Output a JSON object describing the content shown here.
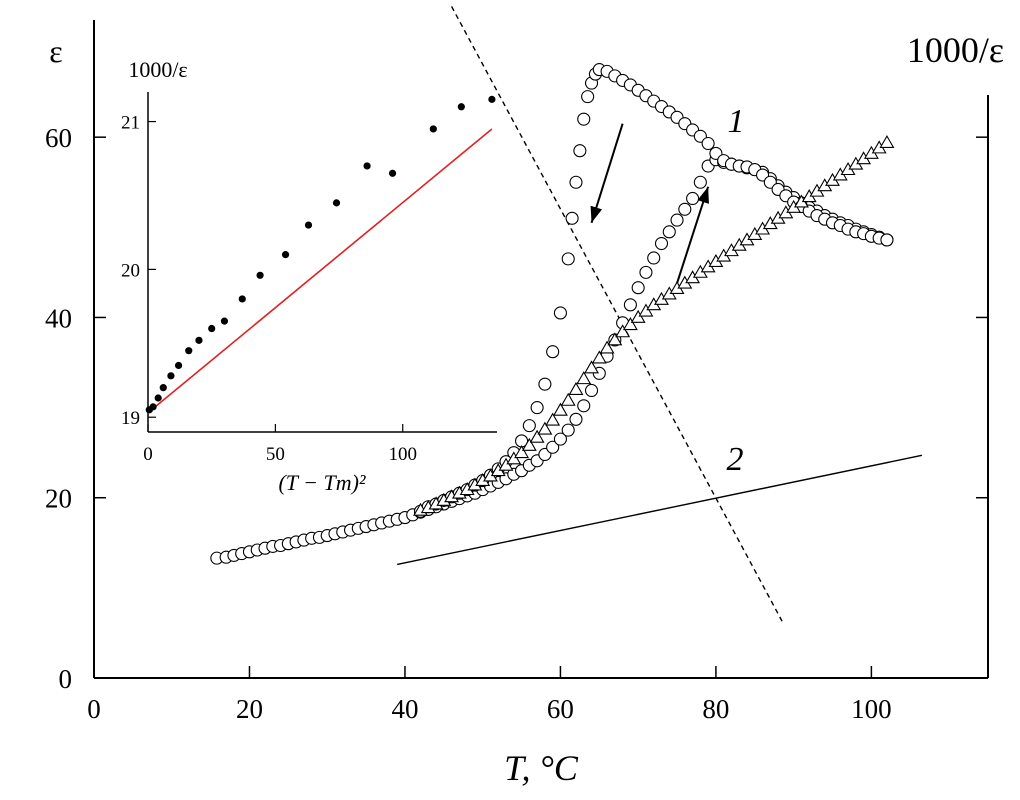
{
  "chart_data": [
    {
      "id": "main",
      "type": "scatter",
      "xlabel": "T, °C",
      "ylabel_left": "ε",
      "ylabel_right": "1000/ε",
      "xlim": [
        0,
        115
      ],
      "ylim": [
        0,
        73
      ],
      "xticks": [
        0,
        20,
        40,
        60,
        80,
        100
      ],
      "yticks": [
        0,
        20,
        40,
        60
      ],
      "grid": false,
      "annotations": [
        "1",
        "2"
      ],
      "series": [
        {
          "marker": "circle",
          "label": "1",
          "x": [
            15.8,
            17,
            18,
            19,
            20,
            21,
            22,
            23,
            24,
            25,
            26,
            27,
            28,
            29,
            30,
            31,
            32,
            33,
            34,
            35,
            36,
            37,
            38,
            39,
            40,
            41,
            42,
            43,
            44,
            45,
            46,
            47,
            48,
            49,
            50,
            51,
            52,
            53,
            54,
            55,
            56,
            57,
            58,
            59,
            60,
            61,
            62,
            63,
            64,
            65,
            66,
            67,
            68,
            69,
            70,
            71,
            72,
            73,
            74,
            75,
            76,
            77,
            78,
            79,
            80,
            81,
            82,
            83,
            84,
            85,
            86,
            87,
            88,
            89,
            90,
            91,
            92,
            93,
            94,
            95,
            96,
            97,
            98,
            99,
            100,
            101,
            102
          ],
          "y": [
            13.3,
            13.4,
            13.6,
            13.8,
            14.0,
            14.2,
            14.4,
            14.6,
            14.7,
            14.9,
            15.1,
            15.3,
            15.5,
            15.6,
            15.8,
            16.0,
            16.2,
            16.4,
            16.6,
            16.8,
            17.0,
            17.2,
            17.4,
            17.6,
            17.8,
            18.1,
            18.4,
            18.7,
            19.0,
            19.3,
            19.6,
            19.9,
            20.2,
            20.5,
            20.9,
            21.3,
            21.7,
            22.1,
            22.6,
            23.0,
            23.6,
            24.1,
            24.8,
            25.6,
            26.5,
            27.5,
            28.7,
            30.2,
            31.9,
            33.8,
            35.7,
            37.5,
            39.4,
            41.4,
            43.3,
            45.0,
            46.6,
            48.2,
            49.5,
            50.8,
            52.0,
            53.2,
            55.0,
            56.8,
            57.5,
            57.2,
            57.0,
            56.8,
            56.6,
            56.4,
            56.1,
            55.4,
            54.6,
            53.9,
            53.3,
            52.7,
            52.2,
            51.8,
            51.3,
            50.9,
            50.5,
            50.2,
            49.8,
            49.5,
            49.2,
            48.9,
            48.6
          ]
        },
        {
          "marker": "circle",
          "label": "1",
          "x": [
            42,
            43,
            44,
            45,
            46,
            47,
            48,
            49,
            50,
            51,
            52,
            53,
            54,
            55,
            56,
            57,
            58,
            59,
            60,
            61,
            61.5,
            62,
            62.5,
            63,
            63.5,
            64,
            64.5,
            65,
            66,
            67,
            68,
            69,
            70,
            71,
            72,
            73,
            74,
            75,
            76,
            77,
            78,
            79,
            80,
            81,
            82,
            83,
            84,
            85,
            86,
            87,
            88,
            89,
            90,
            91,
            92,
            93,
            94,
            95,
            96,
            97,
            98,
            99,
            100,
            101,
            102
          ],
          "y": [
            18.5,
            19.0,
            19.3,
            19.7,
            20.1,
            20.5,
            20.9,
            21.4,
            21.9,
            22.5,
            23.2,
            24.0,
            25.0,
            26.3,
            28.0,
            30.0,
            32.6,
            36.2,
            40.5,
            46.5,
            51.0,
            55.0,
            58.5,
            62.0,
            64.5,
            66.0,
            67.0,
            67.5,
            67.3,
            66.8,
            66.3,
            65.8,
            65.2,
            64.6,
            64.0,
            63.4,
            62.8,
            62.2,
            61.5,
            60.8,
            60.1,
            59.3,
            58.2,
            57.4,
            57.0,
            56.8,
            56.7,
            56.4,
            55.8,
            55.0,
            54.2,
            53.5,
            52.8,
            52.3,
            51.8,
            51.3,
            50.9,
            50.5,
            50.2,
            49.8,
            49.5,
            49.3,
            49.0,
            48.8,
            48.6
          ]
        },
        {
          "marker": "triangle",
          "label": "2",
          "x": [
            42,
            43,
            44,
            45,
            46,
            47,
            48,
            49,
            50,
            51,
            52,
            53,
            54,
            55,
            56,
            57,
            58,
            59,
            60,
            61,
            62,
            63,
            64,
            65,
            66,
            67,
            68,
            69,
            70,
            71,
            72,
            73,
            74,
            75,
            76,
            77,
            78,
            79,
            80,
            81,
            82,
            83,
            84,
            85,
            86,
            87,
            88,
            89,
            90,
            91,
            92,
            93,
            94,
            95,
            96,
            97,
            98,
            99,
            100,
            101,
            102
          ],
          "y": [
            18.6,
            18.9,
            19.3,
            19.7,
            20.1,
            20.5,
            20.9,
            21.4,
            21.9,
            22.4,
            23.0,
            23.6,
            24.3,
            25.0,
            25.8,
            26.7,
            27.6,
            28.6,
            29.7,
            30.8,
            32.0,
            33.2,
            34.4,
            35.5,
            36.6,
            37.5,
            38.4,
            39.2,
            40.0,
            40.7,
            41.4,
            42.0,
            42.6,
            43.2,
            43.8,
            44.4,
            45.0,
            45.6,
            46.2,
            46.8,
            47.4,
            48.0,
            48.6,
            49.2,
            49.8,
            50.4,
            51.0,
            51.6,
            52.2,
            52.8,
            53.4,
            54.0,
            54.6,
            55.2,
            55.8,
            56.4,
            57.0,
            57.6,
            58.2,
            58.8,
            59.4
          ]
        }
      ],
      "fit_lines": [
        {
          "style": "solid",
          "x": [
            39,
            106.5
          ],
          "y": [
            12.6,
            24.7
          ]
        },
        {
          "style": "dashed",
          "x": [
            46,
            88.7
          ],
          "y": [
            74.5,
            6.0
          ]
        }
      ],
      "arrows": [
        {
          "from": [
            68,
            61.5
          ],
          "to": [
            64,
            50.5
          ]
        },
        {
          "from": [
            75,
            43.8
          ],
          "to": [
            79,
            54.5
          ]
        }
      ]
    },
    {
      "id": "inset",
      "type": "scatter",
      "xlabel": "(T − Tm)²",
      "ylabel": "1000/ε",
      "xlim": [
        0,
        137
      ],
      "ylim": [
        18.9,
        21.2
      ],
      "xticks": [
        0,
        50,
        100
      ],
      "yticks": [
        19,
        20,
        21
      ],
      "grid": false,
      "series": [
        {
          "marker": "dot",
          "x": [
            0.5,
            2,
            4,
            6,
            9,
            12,
            16,
            20,
            25,
            30,
            37,
            44,
            54,
            63,
            74,
            86,
            96,
            112,
            123,
            135
          ],
          "y": [
            19.05,
            19.07,
            19.13,
            19.2,
            19.28,
            19.35,
            19.45,
            19.52,
            19.6,
            19.65,
            19.8,
            19.96,
            20.1,
            20.3,
            20.45,
            20.7,
            20.65,
            20.95,
            21.1,
            21.15
          ]
        }
      ],
      "fit_lines": [
        {
          "style": "solid",
          "color": "#e02020",
          "x": [
            0,
            135
          ],
          "y": [
            19.03,
            20.95
          ]
        }
      ]
    }
  ]
}
